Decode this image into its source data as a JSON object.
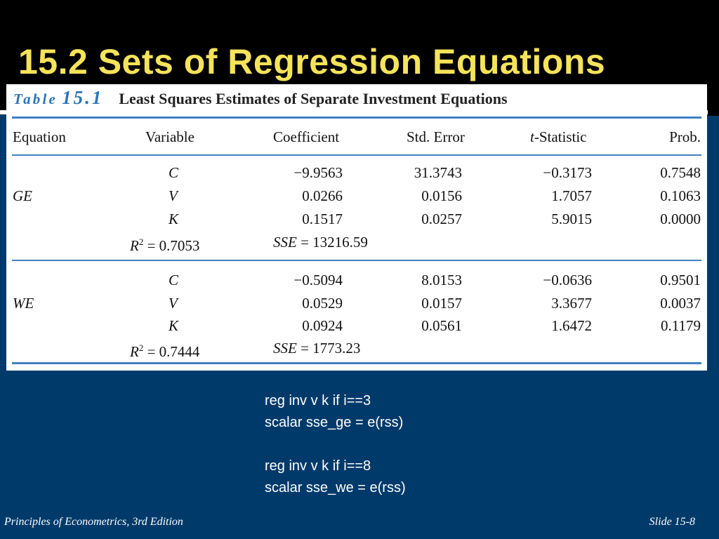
{
  "slide": {
    "title": "15.2 Sets of Regression Equations",
    "footer_left": "Principles of Econometrics, 3rd Edition",
    "footer_right": "Slide 15-8",
    "colors": {
      "background_bottom": "#003a6b",
      "title": "#f5e35a",
      "table_rule": "#3d80c3"
    }
  },
  "table": {
    "caption_label": "Table",
    "caption_number": "15.1",
    "caption_title": "Least Squares Estimates of Separate Investment Equations",
    "headers": {
      "equation": "Equation",
      "variable": "Variable",
      "coefficient": "Coefficient",
      "std_error": "Std. Error",
      "t_stat_italic": "t",
      "t_stat_rest": "-Statistic",
      "prob": "Prob."
    },
    "groups": [
      {
        "equation": "GE",
        "rows": [
          {
            "variable": "C",
            "coefficient": "−9.9563",
            "std_error": "31.3743",
            "t_stat": "−0.3173",
            "prob": "0.7548"
          },
          {
            "variable": "V",
            "coefficient": "0.0266",
            "std_error": "0.0156",
            "t_stat": "1.7057",
            "prob": "0.1063"
          },
          {
            "variable": "K",
            "coefficient": "0.1517",
            "std_error": "0.0257",
            "t_stat": "5.9015",
            "prob": "0.0000"
          }
        ],
        "r2_label": "R",
        "r2_sup": "2",
        "r2_value": " = 0.7053",
        "sse_label": "SSE",
        "sse_value": " = 13216.59"
      },
      {
        "equation": "WE",
        "rows": [
          {
            "variable": "C",
            "coefficient": "−0.5094",
            "std_error": "8.0153",
            "t_stat": "−0.0636",
            "prob": "0.9501"
          },
          {
            "variable": "V",
            "coefficient": "0.0529",
            "std_error": "0.0157",
            "t_stat": "3.3677",
            "prob": "0.0037"
          },
          {
            "variable": "K",
            "coefficient": "0.0924",
            "std_error": "0.0561",
            "t_stat": "1.6472",
            "prob": "0.1179"
          }
        ],
        "r2_label": "R",
        "r2_sup": "2",
        "r2_value": " = 0.7444",
        "sse_label": "SSE",
        "sse_value": " = 1773.23"
      }
    ]
  },
  "code_lines": [
    "reg inv v k if i==3",
    "scalar sse_ge = e(rss)",
    "",
    "reg inv v k if i==8",
    "scalar sse_we = e(rss)"
  ]
}
